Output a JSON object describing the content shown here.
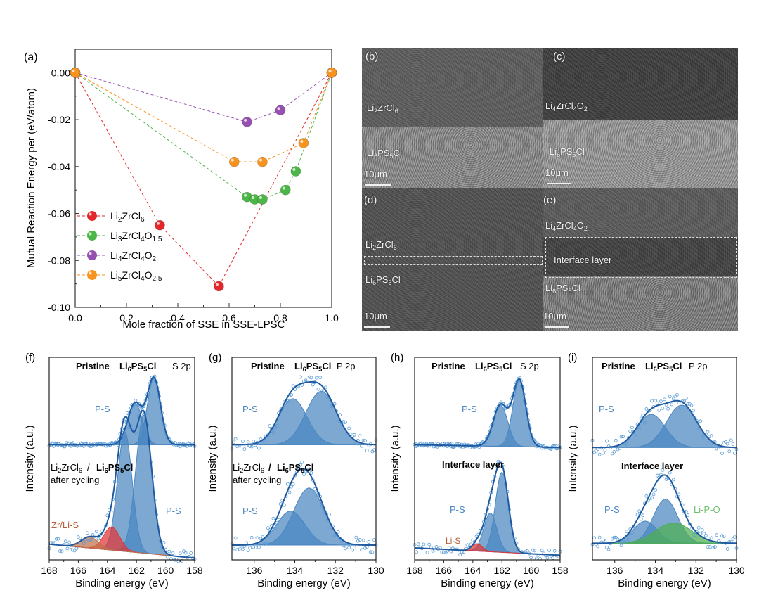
{
  "colors": {
    "red": "#e2282c",
    "green": "#4cb648",
    "purple": "#9550b0",
    "orange": "#f7931e",
    "xps_blue": "#4a86c0",
    "xps_env": "#1f5aa0",
    "xps_red": "#e03434",
    "xps_brown": "#c07048",
    "xps_green": "#4caf50",
    "label_blue": "#4a86c0",
    "label_brown": "#b5603a",
    "label_green": "#6cc06c"
  },
  "sem": {
    "b": {
      "label": "(b)",
      "top": [
        "Li",
        "2",
        "ZrCl",
        "6"
      ],
      "bottom": [
        "Li",
        "6",
        "PS",
        "5",
        "Cl"
      ],
      "scale": "10μm"
    },
    "c": {
      "label": "(c)",
      "top": [
        "Li",
        "4",
        "ZrCl",
        "4",
        "O",
        "2"
      ],
      "bottom": [
        "Li",
        "6",
        "PS",
        "5",
        "Cl"
      ],
      "scale": "10μm"
    },
    "d": {
      "label": "(d)",
      "top": [
        "Li",
        "2",
        "ZrCl",
        "6"
      ],
      "bottom": [
        "Li",
        "6",
        "PS",
        "5",
        "Cl"
      ],
      "scale": "10μm"
    },
    "e": {
      "label": "(e)",
      "top": [
        "Li",
        "4",
        "ZrCl",
        "4",
        "O",
        "2"
      ],
      "middle": "Interface layer",
      "bottom": [
        "Li",
        "6",
        "PS",
        "5",
        "Cl"
      ],
      "scale": "10μm"
    }
  },
  "chart_data": [
    {
      "type": "line",
      "panel_label": "(a)",
      "xlabel": "Mole fraction of SSE in SSE-LPSC",
      "ylabel": "Mutual Reaction Energy per (eV/atom)",
      "xlim": [
        0,
        1
      ],
      "ylim": [
        -0.1,
        0.01
      ],
      "xticks": [
        "0.0",
        "0.2",
        "0.4",
        "0.6",
        "0.8",
        "1.0"
      ],
      "yticks": [
        "0.00",
        "-0.02",
        "-0.04",
        "-0.06",
        "-0.08",
        "-0.10"
      ],
      "legend_position": "bottom-left",
      "series": [
        {
          "name": [
            "Li",
            "2",
            "ZrCl",
            "6"
          ],
          "color": "#e2282c",
          "x": [
            0,
            0.33,
            0.56,
            1
          ],
          "y": [
            0,
            -0.065,
            -0.091,
            0
          ]
        },
        {
          "name": [
            "Li",
            "3",
            "ZrCl",
            "4",
            "O",
            "1.5"
          ],
          "color": "#4cb648",
          "x": [
            0,
            0.67,
            0.7,
            0.73,
            0.82,
            0.86,
            1
          ],
          "y": [
            0,
            -0.053,
            -0.054,
            -0.054,
            -0.05,
            -0.042,
            0
          ]
        },
        {
          "name": [
            "Li",
            "4",
            "ZrCl",
            "4",
            "O",
            "2"
          ],
          "color": "#9550b0",
          "x": [
            0,
            0.67,
            0.8,
            1
          ],
          "y": [
            0,
            -0.021,
            -0.016,
            0
          ]
        },
        {
          "name": [
            "Li",
            "5",
            "ZrCl",
            "4",
            "O",
            "2.5"
          ],
          "color": "#f7931e",
          "x": [
            0,
            0.62,
            0.73,
            0.89,
            1
          ],
          "y": [
            0,
            -0.038,
            -0.038,
            -0.03,
            0
          ]
        }
      ]
    },
    {
      "type": "area",
      "panel_label": "(f)",
      "title_prefix": "Pristine ",
      "title_formula": [
        "Li",
        "6",
        "PS",
        "5",
        "Cl"
      ],
      "core_level": "S 2p",
      "bottom_formula_1": [
        "Li",
        "2",
        "ZrCl",
        "6"
      ],
      "bottom_sep": "/ ",
      "bottom_formula_2": [
        "Li",
        "6",
        "PS",
        "5",
        "Cl"
      ],
      "bottom_note": "after cycling",
      "annotations": [
        "P-S",
        "P-S",
        "Zr/Li-S"
      ],
      "xlabel": "Binding energy (eV)",
      "ylabel": "Intensity (a.u.)",
      "xlim": [
        168,
        158
      ],
      "ylim": [
        0,
        2.2
      ],
      "xticks": [
        "168",
        "166",
        "164",
        "162",
        "160",
        "158"
      ],
      "spectra": [
        {
          "name": "pristine",
          "baseline": [
            1.25,
            1.25
          ],
          "noise": 0.02,
          "components": [
            {
              "label": "P-S",
              "center": 160.8,
              "amplitude": 0.72,
              "sigma": 0.45,
              "color": "#4a86c0"
            },
            {
              "label": "P-S",
              "center": 162.1,
              "amplitude": 0.45,
              "sigma": 0.5,
              "color": "#4a86c0"
            }
          ]
        },
        {
          "name": "after cycling",
          "baseline": [
            0.17,
            0.02
          ],
          "noise": 0.07,
          "components": [
            {
              "label": "P-S",
              "center": 161.5,
              "amplitude": 1.5,
              "sigma": 0.55,
              "color": "#4a86c0"
            },
            {
              "label": "P-S",
              "center": 162.8,
              "amplitude": 1.3,
              "sigma": 0.5,
              "color": "#4a86c0"
            },
            {
              "label": "Zr/Li-S",
              "center": 163.7,
              "amplitude": 0.25,
              "sigma": 0.55,
              "color": "#e03434"
            },
            {
              "label": "Zr/Li-S",
              "center": 165.2,
              "amplitude": 0.12,
              "sigma": 0.6,
              "color": "#c07048"
            }
          ]
        }
      ]
    },
    {
      "type": "area",
      "panel_label": "(g)",
      "title_prefix": "Pristine ",
      "title_formula": [
        "Li",
        "6",
        "PS",
        "5",
        "Cl"
      ],
      "core_level": "P 2p",
      "bottom_formula_1": [
        "Li",
        "2",
        "ZrCl",
        "6"
      ],
      "bottom_sep": " /",
      "bottom_formula_2": [
        "Li",
        "6",
        "PS",
        "5",
        "Cl"
      ],
      "bottom_note": "after cycling",
      "annotations": [
        "P-S",
        "P-S"
      ],
      "xlabel": "Binding energy (eV)",
      "ylabel": "Intensity (a.u.)",
      "xlim": [
        137.1,
        130
      ],
      "ylim": [
        0,
        2.2
      ],
      "xticks": [
        "136",
        "134",
        "132",
        "130"
      ],
      "spectra": [
        {
          "name": "pristine",
          "baseline": [
            1.25,
            1.25
          ],
          "noise": 0.08,
          "components": [
            {
              "label": "P-S",
              "center": 134.1,
              "amplitude": 0.5,
              "sigma": 0.7,
              "color": "#4a86c0"
            },
            {
              "label": "P-S",
              "center": 132.7,
              "amplitude": 0.58,
              "sigma": 0.75,
              "color": "#4a86c0"
            }
          ]
        },
        {
          "name": "after cycling",
          "baseline": [
            0.16,
            0.16
          ],
          "noise": 0.08,
          "components": [
            {
              "label": "P-S",
              "center": 134.2,
              "amplitude": 0.37,
              "sigma": 0.7,
              "color": "#4a86c0"
            },
            {
              "label": "P-S",
              "center": 133.3,
              "amplitude": 0.62,
              "sigma": 0.75,
              "color": "#4a86c0"
            }
          ]
        }
      ]
    },
    {
      "type": "area",
      "panel_label": "(h)",
      "title_prefix": "Pristine ",
      "title_formula": [
        "Li",
        "6",
        "PS",
        "5",
        "Cl"
      ],
      "core_level": "S 2p",
      "bottom_title": "Interface layer",
      "annotations": [
        "P-S",
        "P-S",
        "Li-S"
      ],
      "xlabel": "Binding energy (eV)",
      "ylabel": "Intensity (a.u.)",
      "xlim": [
        168,
        158
      ],
      "ylim": [
        0,
        2.2
      ],
      "xticks": [
        "168",
        "166",
        "164",
        "162",
        "160",
        "158"
      ],
      "spectra": [
        {
          "name": "pristine",
          "baseline": [
            1.25,
            1.22
          ],
          "noise": 0.02,
          "components": [
            {
              "label": "P-S",
              "center": 160.8,
              "amplitude": 0.72,
              "sigma": 0.45,
              "color": "#4a86c0"
            },
            {
              "label": "P-S",
              "center": 162.1,
              "amplitude": 0.45,
              "sigma": 0.5,
              "color": "#4a86c0"
            }
          ]
        },
        {
          "name": "interface layer",
          "baseline": [
            0.13,
            0.05
          ],
          "noise": 0.05,
          "components": [
            {
              "label": "P-S",
              "center": 162.0,
              "amplitude": 0.87,
              "sigma": 0.45,
              "color": "#4a86c0"
            },
            {
              "label": "P-S",
              "center": 162.8,
              "amplitude": 0.42,
              "sigma": 0.45,
              "color": "#4a86c0"
            },
            {
              "label": "Li-S",
              "center": 163.7,
              "amplitude": 0.08,
              "sigma": 0.35,
              "color": "#e03434"
            }
          ]
        }
      ]
    },
    {
      "type": "area",
      "panel_label": "(i)",
      "title_prefix": "Pristine ",
      "title_formula": [
        "Li",
        "6",
        "PS",
        "5",
        "Cl"
      ],
      "core_level": "P 2p",
      "bottom_title": "Interface layer",
      "annotations": [
        "P-S",
        "P-S",
        "Li-P-O"
      ],
      "xlabel": "Binding energy (eV)",
      "ylabel": "Intensity (a.u.)",
      "xlim": [
        137.1,
        130
      ],
      "ylim": [
        0,
        2.2
      ],
      "xticks": [
        "136",
        "134",
        "132",
        "130"
      ],
      "spectra": [
        {
          "name": "pristine",
          "baseline": [
            1.22,
            1.22
          ],
          "noise": 0.08,
          "components": [
            {
              "label": "P-S",
              "center": 134.2,
              "amplitude": 0.36,
              "sigma": 0.7,
              "color": "#4a86c0"
            },
            {
              "label": "P-S",
              "center": 132.7,
              "amplitude": 0.46,
              "sigma": 0.75,
              "color": "#4a86c0"
            }
          ]
        },
        {
          "name": "interface layer",
          "baseline": [
            0.18,
            0.18
          ],
          "noise": 0.08,
          "components": [
            {
              "label": "P-S",
              "center": 134.5,
              "amplitude": 0.24,
              "sigma": 0.6,
              "color": "#4a86c0"
            },
            {
              "label": "P-S",
              "center": 133.5,
              "amplitude": 0.48,
              "sigma": 0.6,
              "color": "#4a86c0"
            },
            {
              "label": "Li-P-O",
              "center": 133.1,
              "amplitude": 0.22,
              "sigma": 0.9,
              "color": "#4caf50"
            }
          ]
        }
      ]
    }
  ]
}
